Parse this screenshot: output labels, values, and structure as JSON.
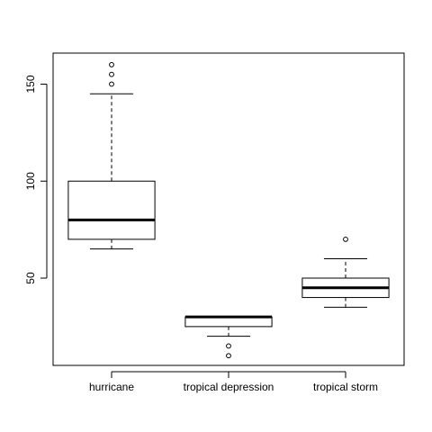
{
  "chart_data": {
    "type": "boxplot",
    "title": "",
    "xlabel": "",
    "ylabel": "",
    "ylim": [
      5,
      166
    ],
    "yticks": [
      50,
      100,
      150
    ],
    "categories": [
      "hurricane",
      "tropical depression",
      "tropical storm"
    ],
    "boxes": [
      {
        "category": "hurricane",
        "whisker_low": 65,
        "q1": 70,
        "median": 80,
        "q3": 100,
        "whisker_high": 145,
        "outliers": [
          150,
          155,
          160
        ]
      },
      {
        "category": "tropical depression",
        "whisker_low": 20,
        "q1": 25,
        "median": 30,
        "q3": 30,
        "whisker_high": 30,
        "outliers": [
          10,
          15
        ]
      },
      {
        "category": "tropical storm",
        "whisker_low": 35,
        "q1": 40,
        "median": 45,
        "q3": 50,
        "whisker_high": 60,
        "outliers": [
          70
        ]
      }
    ],
    "grid": false,
    "colors": {
      "line": "#000000",
      "box_fill": "#ffffff"
    }
  }
}
